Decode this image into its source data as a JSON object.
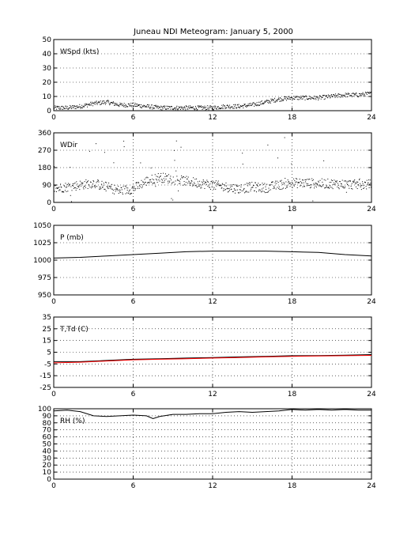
{
  "title": "Juneau NDI Meteogram:   January  5, 2000",
  "colors": {
    "primary": "#000000",
    "dewpoint": "#ff0000"
  },
  "chart_data": [
    {
      "type": "scatter",
      "label": "WSpd (kts)",
      "xlim": [
        0,
        24
      ],
      "ylim": [
        0,
        50
      ],
      "xticks": [
        0,
        6,
        12,
        18,
        24
      ],
      "yticks": [
        0,
        10,
        20,
        30,
        40,
        50
      ],
      "grid": true,
      "trend": [
        [
          0,
          2
        ],
        [
          1,
          2
        ],
        [
          2,
          3
        ],
        [
          3,
          5
        ],
        [
          4,
          6
        ],
        [
          5,
          4
        ],
        [
          6,
          4
        ],
        [
          7,
          3
        ],
        [
          8,
          2
        ],
        [
          9,
          2
        ],
        [
          10,
          2
        ],
        [
          11,
          2
        ],
        [
          12,
          2
        ],
        [
          13,
          3
        ],
        [
          14,
          3
        ],
        [
          15,
          4
        ],
        [
          16,
          6
        ],
        [
          17,
          8
        ],
        [
          18,
          9
        ],
        [
          19,
          9
        ],
        [
          20,
          9
        ],
        [
          21,
          10
        ],
        [
          22,
          11
        ],
        [
          23,
          11
        ],
        [
          24,
          12
        ]
      ],
      "spread": 1.5
    },
    {
      "type": "scatter",
      "label": "WDir",
      "xlim": [
        0,
        24
      ],
      "ylim": [
        0,
        360
      ],
      "xticks": [
        0,
        6,
        12,
        18,
        24
      ],
      "yticks": [
        0,
        90,
        180,
        270,
        360
      ],
      "grid": true,
      "trend": [
        [
          0,
          70
        ],
        [
          1,
          80
        ],
        [
          2,
          90
        ],
        [
          3,
          100
        ],
        [
          4,
          80
        ],
        [
          5,
          60
        ],
        [
          6,
          70
        ],
        [
          7,
          110
        ],
        [
          8,
          130
        ],
        [
          9,
          120
        ],
        [
          10,
          110
        ],
        [
          11,
          100
        ],
        [
          12,
          90
        ],
        [
          13,
          80
        ],
        [
          14,
          70
        ],
        [
          15,
          80
        ],
        [
          16,
          75
        ],
        [
          17,
          90
        ],
        [
          18,
          100
        ],
        [
          19,
          100
        ],
        [
          20,
          98
        ],
        [
          21,
          96
        ],
        [
          22,
          94
        ],
        [
          23,
          92
        ],
        [
          24,
          92
        ]
      ],
      "spread": 25
    },
    {
      "type": "line",
      "label": "P (mb)",
      "xlim": [
        0,
        24
      ],
      "ylim": [
        950,
        1050
      ],
      "xticks": [
        0,
        6,
        12,
        18,
        24
      ],
      "yticks": [
        950,
        975,
        1000,
        1025,
        1050
      ],
      "grid": true,
      "series": [
        {
          "color": "#000000",
          "x": [
            0,
            2,
            4,
            6,
            8,
            10,
            12,
            14,
            16,
            18,
            20,
            22,
            24
          ],
          "y": [
            1003,
            1004,
            1006,
            1008,
            1010,
            1012,
            1013,
            1013,
            1013,
            1012,
            1011,
            1008,
            1006
          ]
        }
      ]
    },
    {
      "type": "line",
      "label": "T,Td (C)",
      "xlim": [
        0,
        24
      ],
      "ylim": [
        -25,
        35
      ],
      "xticks": [
        0,
        6,
        12,
        18,
        24
      ],
      "yticks": [
        -25,
        -15,
        -5,
        5,
        15,
        25,
        35
      ],
      "grid": true,
      "series": [
        {
          "color": "#000000",
          "x": [
            0,
            2,
            4,
            6,
            8,
            10,
            12,
            14,
            16,
            18,
            20,
            22,
            24
          ],
          "y": [
            -3,
            -3,
            -2,
            -1,
            -0.5,
            0,
            0.5,
            1,
            1.5,
            2,
            2.2,
            2.5,
            3
          ]
        },
        {
          "color": "#ff0000",
          "x": [
            0,
            2,
            4,
            6,
            8,
            10,
            12,
            14,
            16,
            18,
            20,
            22,
            24
          ],
          "y": [
            -4,
            -3.5,
            -2.5,
            -1.5,
            -1,
            -0.5,
            0,
            0.5,
            1,
            1.5,
            1.8,
            2,
            2.3
          ]
        }
      ]
    },
    {
      "type": "line",
      "label": "RH (%)",
      "xlim": [
        0,
        24
      ],
      "ylim": [
        0,
        100
      ],
      "xticks": [
        0,
        6,
        12,
        18,
        24
      ],
      "yticks": [
        0,
        10,
        20,
        30,
        40,
        50,
        60,
        70,
        80,
        90,
        100
      ],
      "grid": true,
      "series": [
        {
          "color": "#000000",
          "x": [
            0,
            1,
            2,
            3,
            4,
            5,
            6,
            7,
            7.5,
            8,
            9,
            10,
            11,
            12,
            13,
            14,
            15,
            16,
            17,
            18,
            19,
            20,
            21,
            22,
            23,
            24
          ],
          "y": [
            97,
            98,
            96,
            90,
            89,
            90,
            91,
            90,
            86,
            89,
            92,
            92,
            93,
            93,
            95,
            96,
            95,
            96,
            97,
            99,
            98,
            99,
            98,
            99,
            98,
            98
          ]
        }
      ]
    }
  ]
}
